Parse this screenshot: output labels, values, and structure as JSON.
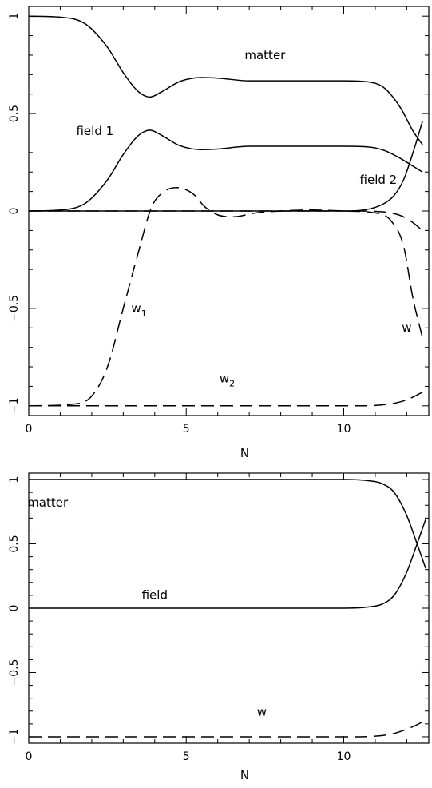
{
  "chart_data": [
    {
      "type": "line",
      "title": "",
      "xlabel": "N",
      "ylabel": "",
      "xlim": [
        0,
        12.7
      ],
      "ylim": [
        -1.05,
        1.05
      ],
      "xticks": [
        0,
        5,
        10
      ],
      "yticks": [
        -1,
        -0.5,
        0,
        0.5,
        1
      ],
      "xtick_labels": [
        "0",
        "5",
        "10"
      ],
      "ytick_labels": [
        "−1",
        "−0.5",
        "0",
        "0.5",
        "1"
      ],
      "grid": false,
      "annotations": [
        {
          "text": "matter",
          "sub": "",
          "x": 7.5,
          "y": 0.78
        },
        {
          "text": "field  1",
          "sub": "",
          "x": 2.1,
          "y": 0.39
        },
        {
          "text": "field  2",
          "sub": "",
          "x": 11.1,
          "y": 0.14
        },
        {
          "text": "w",
          "sub": "1",
          "x": 3.5,
          "y": -0.52
        },
        {
          "text": "w",
          "sub": "",
          "x": 12.0,
          "y": -0.62
        },
        {
          "text": "w",
          "sub": "2",
          "x": 6.3,
          "y": -0.88
        }
      ],
      "series": [
        {
          "style": "solid",
          "x": [
            0,
            1,
            1.8,
            2.5,
            3.0,
            3.5,
            3.85,
            4.2,
            4.8,
            5.5,
            6.0,
            7.0,
            8.0,
            9.0,
            10.0,
            10.8,
            11.3,
            11.8,
            12.2,
            12.5
          ],
          "y": [
            1.0,
            0.995,
            0.96,
            0.84,
            0.71,
            0.61,
            0.585,
            0.61,
            0.665,
            0.685,
            0.682,
            0.668,
            0.668,
            0.668,
            0.668,
            0.662,
            0.63,
            0.53,
            0.41,
            0.34
          ]
        },
        {
          "style": "solid",
          "x": [
            0,
            1,
            1.8,
            2.5,
            3.0,
            3.5,
            3.85,
            4.2,
            4.8,
            5.5,
            6.0,
            7.0,
            8.0,
            9.0,
            10.0,
            10.8,
            11.3,
            11.8,
            12.2,
            12.5
          ],
          "y": [
            0.0,
            0.005,
            0.04,
            0.16,
            0.29,
            0.39,
            0.415,
            0.39,
            0.335,
            0.315,
            0.318,
            0.332,
            0.332,
            0.332,
            0.332,
            0.328,
            0.31,
            0.27,
            0.23,
            0.2
          ]
        },
        {
          "style": "solid",
          "x": [
            0,
            10.0,
            10.8,
            11.3,
            11.6,
            11.9,
            12.2,
            12.5
          ],
          "y": [
            0.0,
            0.0,
            0.01,
            0.04,
            0.08,
            0.16,
            0.3,
            0.46
          ]
        },
        {
          "style": "dashed",
          "x": [
            0,
            1.5,
            2.0,
            2.5,
            3.0,
            3.5,
            3.9,
            4.3,
            4.7,
            5.2,
            5.6,
            6.0,
            6.5,
            7.2,
            8.0,
            9.0,
            10.0,
            11.0,
            11.5,
            11.9,
            12.2,
            12.5
          ],
          "y": [
            -1.0,
            -0.99,
            -0.95,
            -0.8,
            -0.5,
            -0.2,
            0.02,
            0.1,
            0.12,
            0.09,
            0.02,
            -0.02,
            -0.03,
            -0.01,
            0.0,
            0.005,
            0.0,
            -0.01,
            -0.05,
            -0.18,
            -0.45,
            -0.65
          ]
        },
        {
          "style": "dashed",
          "x": [
            0,
            10.5,
            11.0,
            11.5,
            11.9,
            12.2,
            12.5
          ],
          "y": [
            -1.0,
            -1.0,
            -0.998,
            -0.99,
            -0.975,
            -0.955,
            -0.93
          ]
        },
        {
          "style": "dashed",
          "x": [
            0,
            10.5,
            11.0,
            11.5,
            11.9,
            12.2,
            12.5
          ],
          "y": [
            0.0,
            0.0,
            -0.002,
            -0.01,
            -0.03,
            -0.06,
            -0.1
          ]
        }
      ]
    },
    {
      "type": "line",
      "title": "",
      "xlabel": "N",
      "ylabel": "",
      "xlim": [
        0,
        12.7
      ],
      "ylim": [
        -1.05,
        1.05
      ],
      "xticks": [
        0,
        5,
        10
      ],
      "yticks": [
        -1,
        -0.5,
        0,
        0.5,
        1
      ],
      "xtick_labels": [
        "0",
        "5",
        "10"
      ],
      "ytick_labels": [
        "−1",
        "−0.5",
        "0",
        "0.5",
        "1"
      ],
      "grid": false,
      "annotations": [
        {
          "text": "matter",
          "sub": "",
          "x": 0.6,
          "y": 0.79
        },
        {
          "text": "field",
          "sub": "",
          "x": 4.0,
          "y": 0.07
        },
        {
          "text": "w",
          "sub": "",
          "x": 7.4,
          "y": -0.84
        }
      ],
      "series": [
        {
          "style": "solid",
          "x": [
            0,
            9.0,
            10.0,
            10.8,
            11.2,
            11.6,
            12.0,
            12.3,
            12.6
          ],
          "y": [
            1.0,
            1.0,
            1.0,
            0.99,
            0.97,
            0.9,
            0.72,
            0.52,
            0.31
          ]
        },
        {
          "style": "solid",
          "x": [
            0,
            9.0,
            10.0,
            10.8,
            11.2,
            11.6,
            12.0,
            12.3,
            12.6
          ],
          "y": [
            0.0,
            0.0,
            0.0,
            0.01,
            0.03,
            0.1,
            0.28,
            0.48,
            0.69
          ]
        },
        {
          "style": "dashed",
          "x": [
            0,
            10.5,
            11.0,
            11.5,
            11.9,
            12.3,
            12.6
          ],
          "y": [
            -1.0,
            -1.0,
            -0.995,
            -0.98,
            -0.95,
            -0.91,
            -0.87
          ]
        }
      ]
    }
  ]
}
